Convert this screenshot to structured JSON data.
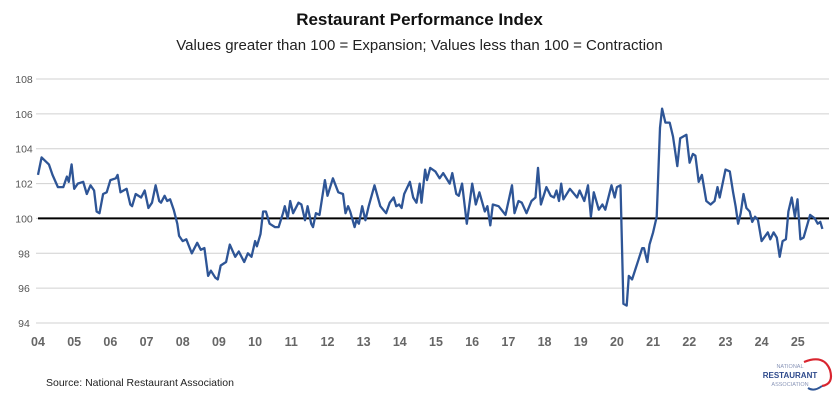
{
  "chart_data": {
    "type": "line",
    "title": "Restaurant Performance Index",
    "subtitle": "Values greater than 100 = Expansion; Values less than 100 = Contraction",
    "source": "Source: National Restaurant Association",
    "xlabel": "",
    "ylabel": "",
    "ylim": [
      94,
      108
    ],
    "xlim": [
      2004,
      2026
    ],
    "y_ticks": [
      "94",
      "96",
      "98",
      "100",
      "102",
      "104",
      "106",
      "108"
    ],
    "x_ticks": [
      "04",
      "05",
      "06",
      "07",
      "08",
      "09",
      "10",
      "11",
      "12",
      "13",
      "14",
      "15",
      "16",
      "17",
      "18",
      "19",
      "20",
      "21",
      "22",
      "23",
      "24",
      "25"
    ],
    "grid": "horizontal",
    "reference_line": 100,
    "line_color": "#2e5596",
    "reference_color": "#000000",
    "series": [
      {
        "points": [
          [
            2004.0,
            102.5
          ],
          [
            2004.1,
            103.5
          ],
          [
            2004.3,
            103.1
          ],
          [
            2004.4,
            102.5
          ],
          [
            2004.55,
            101.8
          ],
          [
            2004.7,
            101.8
          ],
          [
            2004.8,
            102.4
          ],
          [
            2004.85,
            102.1
          ],
          [
            2004.93,
            103.1
          ],
          [
            2005.0,
            101.7
          ],
          [
            2005.1,
            102.0
          ],
          [
            2005.25,
            102.1
          ],
          [
            2005.35,
            101.4
          ],
          [
            2005.45,
            101.9
          ],
          [
            2005.55,
            101.6
          ],
          [
            2005.62,
            100.4
          ],
          [
            2005.7,
            100.3
          ],
          [
            2005.8,
            101.4
          ],
          [
            2005.9,
            101.5
          ],
          [
            2006.0,
            102.2
          ],
          [
            2006.15,
            102.3
          ],
          [
            2006.2,
            102.5
          ],
          [
            2006.28,
            101.5
          ],
          [
            2006.45,
            101.7
          ],
          [
            2006.55,
            100.8
          ],
          [
            2006.6,
            100.7
          ],
          [
            2006.7,
            101.4
          ],
          [
            2006.85,
            101.2
          ],
          [
            2006.95,
            101.6
          ],
          [
            2007.05,
            100.6
          ],
          [
            2007.15,
            100.9
          ],
          [
            2007.25,
            101.9
          ],
          [
            2007.35,
            101.0
          ],
          [
            2007.4,
            100.9
          ],
          [
            2007.5,
            101.3
          ],
          [
            2007.57,
            101.0
          ],
          [
            2007.65,
            101.1
          ],
          [
            2007.75,
            100.5
          ],
          [
            2007.85,
            99.7
          ],
          [
            2007.9,
            99.0
          ],
          [
            2008.0,
            98.7
          ],
          [
            2008.1,
            98.8
          ],
          [
            2008.25,
            98.0
          ],
          [
            2008.4,
            98.6
          ],
          [
            2008.5,
            98.2
          ],
          [
            2008.6,
            98.3
          ],
          [
            2008.7,
            96.7
          ],
          [
            2008.78,
            97.0
          ],
          [
            2008.9,
            96.6
          ],
          [
            2008.97,
            96.5
          ],
          [
            2009.05,
            97.3
          ],
          [
            2009.2,
            97.5
          ],
          [
            2009.3,
            98.5
          ],
          [
            2009.45,
            97.8
          ],
          [
            2009.55,
            98.1
          ],
          [
            2009.7,
            97.5
          ],
          [
            2009.8,
            98.0
          ],
          [
            2009.9,
            97.8
          ],
          [
            2010.0,
            98.7
          ],
          [
            2010.05,
            98.4
          ],
          [
            2010.15,
            99.1
          ],
          [
            2010.22,
            100.4
          ],
          [
            2010.3,
            100.4
          ],
          [
            2010.4,
            99.7
          ],
          [
            2010.55,
            99.5
          ],
          [
            2010.65,
            99.5
          ],
          [
            2010.77,
            100.3
          ],
          [
            2010.82,
            100.7
          ],
          [
            2010.9,
            100.0
          ],
          [
            2010.97,
            101.0
          ],
          [
            2011.05,
            100.3
          ],
          [
            2011.2,
            100.9
          ],
          [
            2011.28,
            100.8
          ],
          [
            2011.38,
            99.9
          ],
          [
            2011.45,
            100.7
          ],
          [
            2011.55,
            99.7
          ],
          [
            2011.6,
            99.5
          ],
          [
            2011.68,
            100.3
          ],
          [
            2011.78,
            100.2
          ],
          [
            2011.93,
            102.2
          ],
          [
            2012.0,
            101.3
          ],
          [
            2012.15,
            102.3
          ],
          [
            2012.3,
            101.5
          ],
          [
            2012.43,
            101.4
          ],
          [
            2012.5,
            100.3
          ],
          [
            2012.57,
            100.7
          ],
          [
            2012.63,
            100.4
          ],
          [
            2012.75,
            99.5
          ],
          [
            2012.8,
            99.9
          ],
          [
            2012.87,
            99.7
          ],
          [
            2012.96,
            100.7
          ],
          [
            2013.05,
            99.9
          ],
          [
            2013.14,
            100.7
          ],
          [
            2013.3,
            101.9
          ],
          [
            2013.46,
            100.7
          ],
          [
            2013.62,
            100.3
          ],
          [
            2013.72,
            100.9
          ],
          [
            2013.83,
            101.2
          ],
          [
            2013.9,
            100.7
          ],
          [
            2013.98,
            100.8
          ],
          [
            2014.05,
            100.6
          ],
          [
            2014.12,
            101.4
          ],
          [
            2014.28,
            102.1
          ],
          [
            2014.37,
            101.2
          ],
          [
            2014.46,
            100.9
          ],
          [
            2014.55,
            102.0
          ],
          [
            2014.6,
            100.9
          ],
          [
            2014.7,
            102.8
          ],
          [
            2014.75,
            102.2
          ],
          [
            2014.84,
            102.9
          ],
          [
            2014.98,
            102.7
          ],
          [
            2015.1,
            102.3
          ],
          [
            2015.2,
            102.6
          ],
          [
            2015.38,
            102.0
          ],
          [
            2015.45,
            102.6
          ],
          [
            2015.56,
            101.4
          ],
          [
            2015.63,
            101.3
          ],
          [
            2015.72,
            102.0
          ],
          [
            2015.85,
            99.7
          ],
          [
            2016.0,
            102.0
          ],
          [
            2016.1,
            100.8
          ],
          [
            2016.2,
            101.5
          ],
          [
            2016.35,
            100.4
          ],
          [
            2016.42,
            100.7
          ],
          [
            2016.5,
            99.6
          ],
          [
            2016.57,
            100.8
          ],
          [
            2016.73,
            100.7
          ],
          [
            2016.92,
            100.2
          ],
          [
            2017.1,
            101.9
          ],
          [
            2017.17,
            100.3
          ],
          [
            2017.28,
            101.0
          ],
          [
            2017.37,
            100.9
          ],
          [
            2017.5,
            100.3
          ],
          [
            2017.64,
            101.0
          ],
          [
            2017.75,
            101.2
          ],
          [
            2017.82,
            102.9
          ],
          [
            2017.9,
            100.8
          ],
          [
            2018.05,
            101.8
          ],
          [
            2018.17,
            101.3
          ],
          [
            2018.26,
            101.2
          ],
          [
            2018.33,
            101.6
          ],
          [
            2018.4,
            101.0
          ],
          [
            2018.46,
            102.0
          ],
          [
            2018.52,
            101.1
          ],
          [
            2018.7,
            101.7
          ],
          [
            2018.9,
            101.2
          ],
          [
            2018.97,
            101.6
          ],
          [
            2019.1,
            101.0
          ],
          [
            2019.2,
            101.9
          ],
          [
            2019.28,
            100.1
          ],
          [
            2019.36,
            101.5
          ],
          [
            2019.5,
            100.5
          ],
          [
            2019.6,
            100.8
          ],
          [
            2019.68,
            100.5
          ],
          [
            2019.85,
            101.9
          ],
          [
            2019.94,
            101.2
          ],
          [
            2020.0,
            101.8
          ],
          [
            2020.1,
            101.9
          ],
          [
            2020.18,
            95.1
          ],
          [
            2020.27,
            95.0
          ],
          [
            2020.33,
            96.7
          ],
          [
            2020.42,
            96.5
          ],
          [
            2020.59,
            97.6
          ],
          [
            2020.7,
            98.3
          ],
          [
            2020.75,
            98.3
          ],
          [
            2020.84,
            97.5
          ],
          [
            2020.9,
            98.5
          ],
          [
            2021.0,
            99.2
          ],
          [
            2021.1,
            100.1
          ],
          [
            2021.19,
            105.2
          ],
          [
            2021.25,
            106.3
          ],
          [
            2021.34,
            105.5
          ],
          [
            2021.46,
            105.5
          ],
          [
            2021.55,
            104.7
          ],
          [
            2021.67,
            103.0
          ],
          [
            2021.75,
            104.6
          ],
          [
            2021.92,
            104.8
          ],
          [
            2022.01,
            103.2
          ],
          [
            2022.1,
            103.7
          ],
          [
            2022.17,
            103.6
          ],
          [
            2022.26,
            102.1
          ],
          [
            2022.35,
            102.5
          ],
          [
            2022.47,
            101.0
          ],
          [
            2022.59,
            100.8
          ],
          [
            2022.7,
            101.0
          ],
          [
            2022.78,
            101.8
          ],
          [
            2022.84,
            101.2
          ],
          [
            2023.0,
            102.8
          ],
          [
            2023.12,
            102.7
          ],
          [
            2023.21,
            101.5
          ],
          [
            2023.28,
            100.7
          ],
          [
            2023.35,
            99.7
          ],
          [
            2023.42,
            100.3
          ],
          [
            2023.5,
            101.4
          ],
          [
            2023.58,
            100.6
          ],
          [
            2023.67,
            100.4
          ],
          [
            2023.74,
            99.8
          ],
          [
            2023.82,
            100.1
          ],
          [
            2023.9,
            99.9
          ],
          [
            2024.0,
            98.7
          ],
          [
            2024.17,
            99.2
          ],
          [
            2024.24,
            98.8
          ],
          [
            2024.33,
            99.2
          ],
          [
            2024.42,
            98.9
          ],
          [
            2024.5,
            97.8
          ],
          [
            2024.58,
            98.7
          ],
          [
            2024.67,
            98.8
          ],
          [
            2024.74,
            100.4
          ],
          [
            2024.83,
            101.2
          ],
          [
            2024.92,
            100.1
          ],
          [
            2024.99,
            101.1
          ],
          [
            2025.07,
            98.8
          ],
          [
            2025.16,
            98.9
          ],
          [
            2025.34,
            100.2
          ],
          [
            2025.47,
            100.0
          ],
          [
            2025.55,
            99.7
          ],
          [
            2025.62,
            99.8
          ],
          [
            2025.68,
            99.4
          ]
        ]
      }
    ]
  },
  "logo": {
    "line1": "NATIONAL",
    "line2": "RESTAURANT",
    "line3": "ASSOCIATION"
  }
}
